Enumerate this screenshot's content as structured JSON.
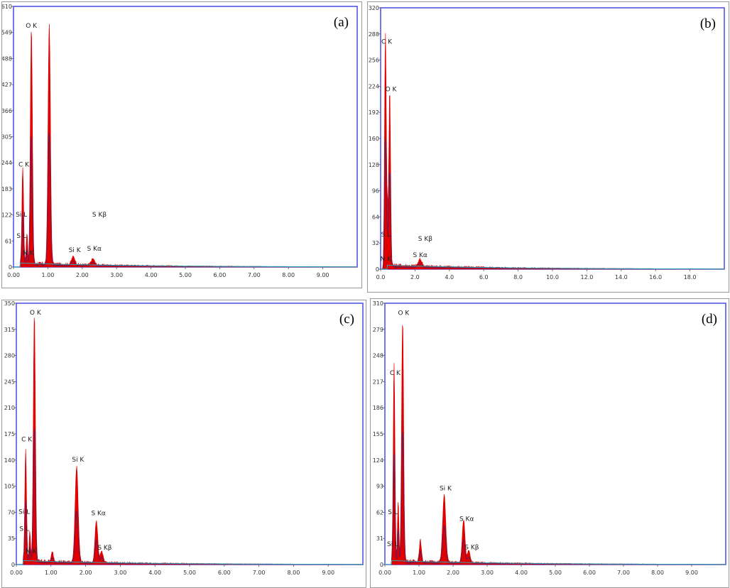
{
  "colors": {
    "spectrum": "#e00000",
    "overlay": "#1a2a8a",
    "trace": "#2aa8b8",
    "frame": "#4a4ae6"
  },
  "chart_data": [
    {
      "type": "line",
      "panel_label": "(a)",
      "xlim": [
        0,
        10
      ],
      "ylim": [
        0,
        610
      ],
      "x_ticks": [
        "0.00",
        "1.00",
        "2.00",
        "3.00",
        "4.00",
        "5.00",
        "6.00",
        "7.00",
        "8.00",
        "9.00"
      ],
      "x_tick_values": [
        0,
        1,
        2,
        3,
        4,
        5,
        6,
        7,
        8,
        9
      ],
      "y_ticks": [
        "0",
        "61",
        "122",
        "183",
        "244",
        "305",
        "366",
        "427",
        "488",
        "549",
        "610"
      ],
      "y_tick_values": [
        0,
        61,
        122,
        183,
        244,
        305,
        366,
        427,
        488,
        549,
        610
      ],
      "peaks": [
        {
          "x": 0.27,
          "y": 225,
          "w": 0.025
        },
        {
          "x": 0.39,
          "y": 70,
          "w": 0.02
        },
        {
          "x": 0.52,
          "y": 550,
          "w": 0.03
        },
        {
          "x": 1.04,
          "y": 560,
          "w": 0.035
        },
        {
          "x": 1.74,
          "y": 18,
          "w": 0.05
        },
        {
          "x": 2.31,
          "y": 14,
          "w": 0.05
        }
      ],
      "labels": [
        {
          "text": "O  K",
          "x": 0.52,
          "y": 560
        },
        {
          "text": "C  K",
          "x": 0.3,
          "y": 235
        },
        {
          "text": "Si L",
          "x": 0.23,
          "y": 118
        },
        {
          "text": "S  L",
          "x": 0.23,
          "y": 68
        },
        {
          "text": "N  K",
          "x": 0.43,
          "y": 28
        },
        {
          "text": "Si K",
          "x": 1.78,
          "y": 35
        },
        {
          "text": "S  Kα",
          "x": 2.35,
          "y": 38
        },
        {
          "text": "S  Kβ",
          "x": 2.5,
          "y": 118
        }
      ]
    },
    {
      "type": "line",
      "panel_label": "(b)",
      "xlim": [
        0,
        20
      ],
      "ylim": [
        0,
        320
      ],
      "x_ticks": [
        "0.0",
        "2.0",
        "4.0",
        "6.0",
        "8.0",
        "10.0",
        "12.0",
        "14.0",
        "16.0",
        "18.0"
      ],
      "x_tick_values": [
        0,
        2,
        4,
        6,
        8,
        10,
        12,
        14,
        16,
        18
      ],
      "y_ticks": [
        "0",
        "32",
        "64",
        "96",
        "128",
        "160",
        "192",
        "224",
        "256",
        "288",
        "320"
      ],
      "y_tick_values": [
        0,
        32,
        64,
        96,
        128,
        160,
        192,
        224,
        256,
        288,
        320
      ],
      "peaks": [
        {
          "x": 0.28,
          "y": 290,
          "w": 0.05
        },
        {
          "x": 0.53,
          "y": 215,
          "w": 0.05
        },
        {
          "x": 0.4,
          "y": 60,
          "w": 0.04
        },
        {
          "x": 2.3,
          "y": 8,
          "w": 0.1
        }
      ],
      "labels": [
        {
          "text": "C  K",
          "x": 0.35,
          "y": 276
        },
        {
          "text": "O  K",
          "x": 0.6,
          "y": 218
        },
        {
          "text": "S  L",
          "x": 0.3,
          "y": 40
        },
        {
          "text": "N  K",
          "x": 0.3,
          "y": 10
        },
        {
          "text": "S  Kβ",
          "x": 2.6,
          "y": 35
        },
        {
          "text": "S  Kα",
          "x": 2.3,
          "y": 15
        }
      ]
    },
    {
      "type": "line",
      "panel_label": "(c)",
      "xlim": [
        0,
        10
      ],
      "ylim": [
        0,
        350
      ],
      "x_ticks": [
        "0.00",
        "1.00",
        "2.00",
        "3.00",
        "4.00",
        "5.00",
        "6.00",
        "7.00",
        "8.00",
        "9.00"
      ],
      "x_tick_values": [
        0,
        1,
        2,
        3,
        4,
        5,
        6,
        7,
        8,
        9
      ],
      "y_ticks": [
        "0",
        "35",
        "70",
        "105",
        "140",
        "175",
        "210",
        "245",
        "280",
        "315",
        "350"
      ],
      "y_tick_values": [
        0,
        35,
        70,
        105,
        140,
        175,
        210,
        245,
        280,
        315,
        350
      ],
      "peaks": [
        {
          "x": 0.27,
          "y": 150,
          "w": 0.025
        },
        {
          "x": 0.39,
          "y": 40,
          "w": 0.02
        },
        {
          "x": 0.52,
          "y": 330,
          "w": 0.03
        },
        {
          "x": 1.04,
          "y": 12,
          "w": 0.03
        },
        {
          "x": 1.74,
          "y": 128,
          "w": 0.045
        },
        {
          "x": 2.31,
          "y": 55,
          "w": 0.04
        },
        {
          "x": 2.46,
          "y": 15,
          "w": 0.04
        }
      ],
      "labels": [
        {
          "text": "O  K",
          "x": 0.55,
          "y": 335
        },
        {
          "text": "C  K",
          "x": 0.3,
          "y": 165
        },
        {
          "text": "Si L",
          "x": 0.23,
          "y": 68
        },
        {
          "text": "S  L",
          "x": 0.23,
          "y": 45
        },
        {
          "text": "N  K",
          "x": 0.43,
          "y": 15
        },
        {
          "text": "Si K",
          "x": 1.78,
          "y": 138
        },
        {
          "text": "S  Kα",
          "x": 2.37,
          "y": 66
        },
        {
          "text": "S  Kβ",
          "x": 2.55,
          "y": 20
        }
      ]
    },
    {
      "type": "line",
      "panel_label": "(d)",
      "xlim": [
        0,
        10
      ],
      "ylim": [
        0,
        310
      ],
      "x_ticks": [
        "0.00",
        "1.00",
        "2.00",
        "3.00",
        "4.00",
        "5.00",
        "6.00",
        "7.00",
        "8.00",
        "9.00"
      ],
      "x_tick_values": [
        0,
        1,
        2,
        3,
        4,
        5,
        6,
        7,
        8,
        9
      ],
      "y_ticks": [
        "0",
        "31",
        "62",
        "93",
        "124",
        "155",
        "186",
        "217",
        "248",
        "279",
        "310"
      ],
      "y_tick_values": [
        0,
        31,
        62,
        93,
        124,
        155,
        186,
        217,
        248,
        279,
        310
      ],
      "peaks": [
        {
          "x": 0.27,
          "y": 235,
          "w": 0.025
        },
        {
          "x": 0.39,
          "y": 70,
          "w": 0.02
        },
        {
          "x": 0.52,
          "y": 285,
          "w": 0.03
        },
        {
          "x": 1.04,
          "y": 25,
          "w": 0.03
        },
        {
          "x": 1.74,
          "y": 80,
          "w": 0.045
        },
        {
          "x": 2.31,
          "y": 50,
          "w": 0.04
        },
        {
          "x": 2.46,
          "y": 15,
          "w": 0.04
        }
      ],
      "labels": [
        {
          "text": "O  K",
          "x": 0.55,
          "y": 296
        },
        {
          "text": "C  K",
          "x": 0.3,
          "y": 225
        },
        {
          "text": "S  L",
          "x": 0.23,
          "y": 60
        },
        {
          "text": "Si L",
          "x": 0.23,
          "y": 22
        },
        {
          "text": "Si K",
          "x": 1.78,
          "y": 88
        },
        {
          "text": "S  Kα",
          "x": 2.4,
          "y": 52
        },
        {
          "text": "S  Kβ",
          "x": 2.55,
          "y": 18
        }
      ]
    }
  ]
}
